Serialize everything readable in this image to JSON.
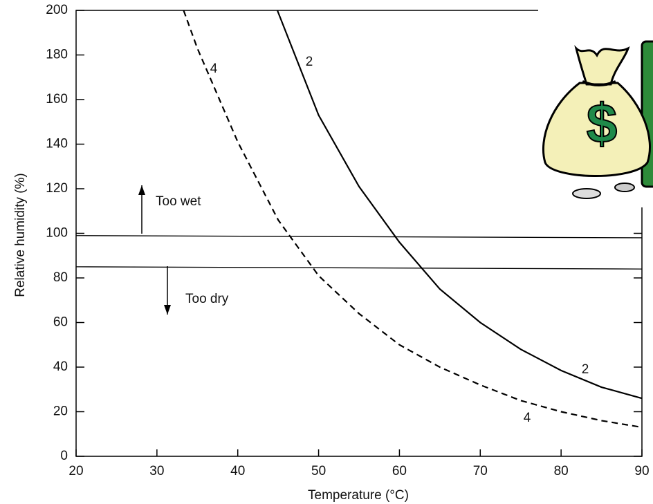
{
  "chart_data": {
    "type": "line",
    "x_label": "Temperature (°C)",
    "y_label": "Relative humidity (%)",
    "xlim": [
      20,
      90
    ],
    "ylim": [
      0,
      200
    ],
    "xticks": [
      20,
      30,
      40,
      50,
      60,
      70,
      80,
      90
    ],
    "yticks": [
      0,
      20,
      40,
      60,
      80,
      100,
      120,
      140,
      160,
      180,
      200
    ],
    "series": [
      {
        "name": "2",
        "color": "#000000",
        "dashed": false,
        "x": [
          44.9,
          50,
          55,
          60,
          65,
          70,
          75,
          80,
          85,
          90
        ],
        "values": [
          200,
          153,
          121,
          96,
          75,
          60,
          48,
          38.5,
          31,
          26
        ]
      },
      {
        "name": "4",
        "color": "#000000",
        "dashed": true,
        "x": [
          33.3,
          35,
          40,
          45,
          50,
          55,
          60,
          65,
          70,
          75,
          80,
          85,
          90
        ],
        "values": [
          200,
          183,
          141,
          106,
          81,
          64,
          50,
          40,
          32,
          25,
          20,
          16,
          13
        ]
      }
    ],
    "reference_lines": [
      {
        "values": [
          99,
          98
        ]
      },
      {
        "values": [
          85,
          84
        ]
      }
    ],
    "annotations": [
      "Too wet",
      "Too dry"
    ]
  }
}
